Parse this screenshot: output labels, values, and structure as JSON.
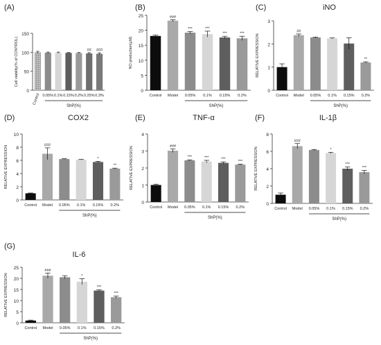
{
  "figure": {
    "colors": {
      "Control": "#0d0d0d",
      "Model": "#a9a9a9",
      "0.05%": "#8c8c8c",
      "0.1%": "#d6d6d6",
      "0.15%": "#5e5e5e",
      "0.2%": "#9a9a9a",
      "0.25%": "#6e6e6e",
      "0.3%": "#7a7a7a",
      "axis": "#333333"
    }
  },
  "chart_data": [
    {
      "type": "bar",
      "panel_label": "(A)",
      "title": "",
      "ylabel": "Cell viability(% of CONTROL)",
      "xlabel": "",
      "categories": [
        "Control",
        "0.05%",
        "0.1%",
        "0.15%",
        "0.2%",
        "0.25%",
        "0.3%"
      ],
      "values": [
        100,
        99,
        99,
        98.5,
        98,
        97,
        96
      ],
      "errors": [
        2.5,
        1.5,
        1.5,
        1,
        1.5,
        2,
        2.5
      ],
      "annotations": [
        "",
        "",
        "",
        "",
        "",
        "##",
        "###"
      ],
      "ylim": [
        0,
        150
      ],
      "yticks": [
        "0",
        "50",
        "100",
        "150"
      ],
      "group_label": "ShP(%)",
      "group_start": 1,
      "bar_style": [
        "dots",
        "solid",
        "solid",
        "solid",
        "solid",
        "solid",
        "solid"
      ]
    },
    {
      "type": "bar",
      "panel_label": "(B)",
      "title": "",
      "ylabel": "NO production(µM)",
      "xlabel": "",
      "categories": [
        "Control",
        "Model",
        "0.05%",
        "0.1%",
        "0.15%",
        "0.2%"
      ],
      "values": [
        18.1,
        23.2,
        19.2,
        18.7,
        17.6,
        17.3
      ],
      "errors": [
        0.3,
        0.3,
        0.4,
        1.0,
        0.4,
        0.7
      ],
      "annotations": [
        "",
        "###",
        "***",
        "***",
        "***",
        "***"
      ],
      "ylim": [
        0,
        25
      ],
      "yticks": [
        "0",
        "5",
        "10",
        "15",
        "20",
        "25"
      ],
      "group_label": "ShP(%)",
      "group_start": 2
    },
    {
      "type": "bar",
      "panel_label": "(C)",
      "title": "iNO",
      "ylabel": "RELATIVE EXPRESSION",
      "xlabel": "",
      "categories": [
        "Control",
        "Model",
        "0.05%",
        "0.1%",
        "0.15%",
        "0.2%"
      ],
      "values": [
        1.0,
        2.38,
        2.28,
        2.24,
        2.02,
        1.2
      ],
      "errors": [
        0.14,
        0.05,
        0.02,
        0.02,
        0.25,
        0.03
      ],
      "annotations": [
        "",
        "##",
        "",
        "",
        "",
        "**"
      ],
      "ylim": [
        0,
        3
      ],
      "yticks": [
        "0",
        "1",
        "2",
        "3"
      ],
      "group_label": "ShP(%)",
      "group_start": 2
    },
    {
      "type": "bar",
      "panel_label": "(D)",
      "title": "COX2",
      "ylabel": "RELATIVE EXPRESSION",
      "xlabel": "",
      "categories": [
        "Control",
        "Model",
        "0.05%",
        "0.1%",
        "0.15%",
        "0.2%"
      ],
      "values": [
        1.0,
        7.0,
        6.2,
        6.1,
        5.75,
        4.75
      ],
      "errors": [
        0.05,
        0.9,
        0.05,
        0.05,
        0.1,
        0.07
      ],
      "annotations": [
        "",
        "###",
        "",
        "",
        "*",
        "**"
      ],
      "ylim": [
        0,
        10
      ],
      "yticks": [
        "0",
        "2",
        "4",
        "6",
        "8",
        "10"
      ],
      "group_label": "ShP(%)",
      "group_start": 2
    },
    {
      "type": "bar",
      "panel_label": "(E)",
      "title": "TNF-α",
      "ylabel": "RELATIVE EXPRESSION",
      "xlabel": "",
      "categories": [
        "Control",
        "Model",
        "0.05%",
        "0.1%",
        "0.15%",
        "0.2%"
      ],
      "values": [
        1.0,
        3.02,
        2.45,
        2.38,
        2.3,
        2.2
      ],
      "errors": [
        0.05,
        0.1,
        0.03,
        0.07,
        0.06,
        0.03
      ],
      "annotations": [
        "",
        "###",
        "***",
        "***",
        "***",
        "***"
      ],
      "ylim": [
        0,
        4
      ],
      "yticks": [
        "0",
        "1",
        "2",
        "3",
        "4"
      ],
      "group_label": "ShP(%)",
      "group_start": 2
    },
    {
      "type": "bar",
      "panel_label": "(F)",
      "title": "IL-1β",
      "ylabel": "RELATIVE EXPRESSION",
      "xlabel": "",
      "categories": [
        "Control",
        "Model",
        "0.05%",
        "0.1%",
        "0.15%",
        "0.2%"
      ],
      "values": [
        1.0,
        6.6,
        6.15,
        5.8,
        4.0,
        3.6
      ],
      "errors": [
        0.2,
        0.3,
        0.06,
        0.08,
        0.2,
        0.2
      ],
      "annotations": [
        "",
        "###",
        "",
        "*",
        "***",
        "***"
      ],
      "ylim": [
        0,
        8
      ],
      "yticks": [
        "0",
        "2",
        "4",
        "6",
        "8"
      ],
      "group_label": "ShP(%)",
      "group_start": 2
    },
    {
      "type": "bar",
      "panel_label": "(G)",
      "title": "IL-6",
      "ylabel": "RELATIVE EXPRESSION",
      "xlabel": "",
      "categories": [
        "Control",
        "Model",
        "0.05%",
        "0.1%",
        "0.15%",
        "0.2%"
      ],
      "values": [
        1.0,
        21.2,
        20.5,
        18.5,
        14.5,
        11.5
      ],
      "errors": [
        0.2,
        1.2,
        0.7,
        1.3,
        0.3,
        0.5
      ],
      "annotations": [
        "",
        "###",
        "",
        "*",
        "***",
        "***"
      ],
      "ylim": [
        0,
        25
      ],
      "yticks": [
        "0",
        "5",
        "10",
        "15",
        "20",
        "25"
      ],
      "group_label": "ShP(%)",
      "group_start": 2
    }
  ]
}
